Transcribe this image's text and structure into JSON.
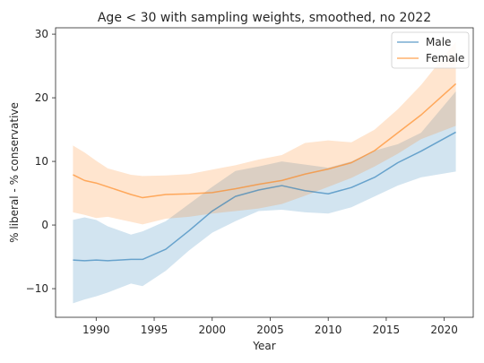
{
  "chart_data": {
    "type": "line",
    "title": "Age < 30 with sampling weights, smoothed, no 2022",
    "xlabel": "Year",
    "ylabel": "% liberal - % conservative",
    "xlim": [
      1986.5,
      2022.5
    ],
    "ylim": [
      -14.5,
      31
    ],
    "xticks": [
      1990,
      1995,
      2000,
      2005,
      2010,
      2015,
      2020
    ],
    "yticks": [
      -10,
      0,
      10,
      20,
      30
    ],
    "grid": false,
    "legend_position": "top-right",
    "x": [
      1988,
      1989,
      1990,
      1991,
      1993,
      1994,
      1996,
      1998,
      2000,
      2002,
      2004,
      2006,
      2008,
      2010,
      2012,
      2014,
      2016,
      2018,
      2021
    ],
    "series": [
      {
        "name": "Male",
        "color": "#1f77b4",
        "values": [
          -5.5,
          -5.6,
          -5.5,
          -5.6,
          -5.4,
          -5.4,
          -3.8,
          -0.9,
          2.2,
          4.5,
          5.5,
          6.2,
          5.4,
          4.9,
          5.9,
          7.5,
          9.8,
          11.6,
          14.6
        ],
        "lower": [
          -12.3,
          -11.7,
          -11.2,
          -10.6,
          -9.2,
          -9.6,
          -7.2,
          -4.0,
          -1.2,
          0.6,
          2.2,
          2.4,
          2.0,
          1.8,
          2.8,
          4.5,
          6.2,
          7.5,
          8.4
        ],
        "upper": [
          0.8,
          1.2,
          0.8,
          -0.2,
          -1.5,
          -1.0,
          0.6,
          3.3,
          6.0,
          8.5,
          9.2,
          10.0,
          9.5,
          9.0,
          10.0,
          11.7,
          12.7,
          14.5,
          21.0
        ]
      },
      {
        "name": "Female",
        "color": "#ff7f0e",
        "values": [
          7.9,
          7.0,
          6.6,
          6.0,
          4.8,
          4.3,
          4.8,
          4.9,
          5.1,
          5.7,
          6.4,
          7.0,
          8.0,
          8.8,
          9.8,
          11.7,
          14.5,
          17.3,
          22.2
        ],
        "lower": [
          2.0,
          1.6,
          1.1,
          1.3,
          0.5,
          0.1,
          1.0,
          1.3,
          1.8,
          2.2,
          2.6,
          3.3,
          4.6,
          6.0,
          7.4,
          9.2,
          11.2,
          13.5,
          15.6
        ],
        "upper": [
          12.5,
          11.4,
          10.1,
          8.9,
          7.9,
          7.7,
          7.8,
          8.0,
          8.7,
          9.4,
          10.3,
          11.0,
          12.9,
          13.3,
          13.0,
          15.0,
          18.2,
          22.0,
          28.8
        ]
      }
    ]
  }
}
